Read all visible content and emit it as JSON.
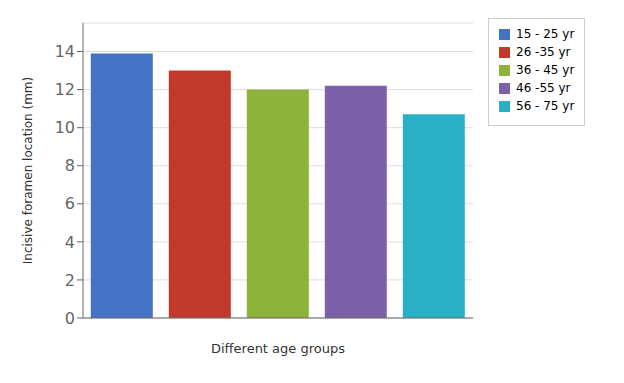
{
  "chart_data": {
    "type": "bar",
    "categories": [
      "15 - 25 yr",
      "26 -35 yr",
      "36 - 45 yr",
      "46 -55 yr",
      "56 - 75 yr"
    ],
    "values": [
      13.9,
      13.0,
      12.0,
      12.2,
      10.7
    ],
    "colors": [
      "#4472c4",
      "#c0392b",
      "#8db33a",
      "#7b62a8",
      "#2ab0c5"
    ],
    "xlabel": "Different age groups",
    "ylabel": "Incisive foramen location (mm)",
    "ylim": [
      0,
      15.5
    ],
    "yticks": [
      0,
      2,
      4,
      6,
      8,
      10,
      12,
      14
    ],
    "grid": true,
    "legend": "right",
    "tick_labels": "y"
  }
}
